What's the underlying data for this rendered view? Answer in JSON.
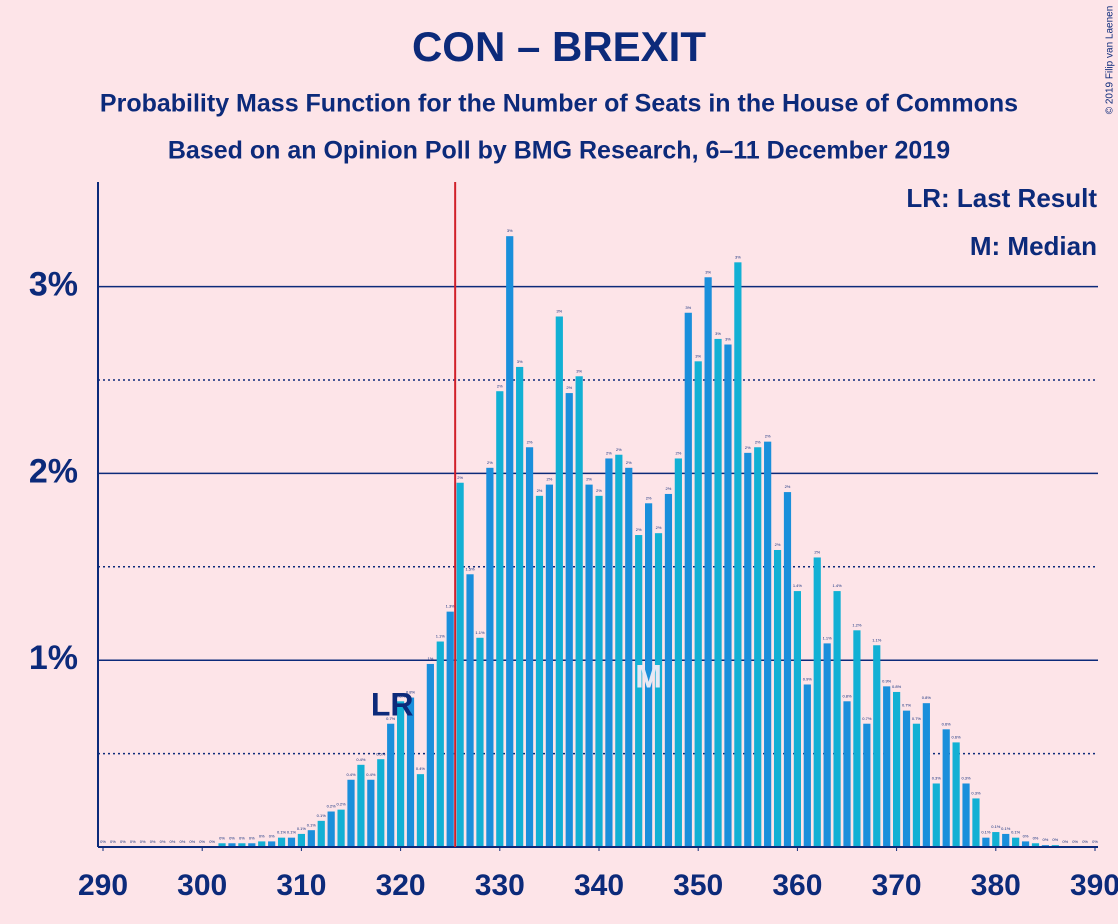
{
  "chart_data": {
    "type": "bar",
    "title": "CON – BREXIT",
    "subtitle": "Probability Mass Function for the Number of Seats in the House of Commons",
    "subtitle2": "Based on an Opinion Poll by BMG Research, 6–11 December 2019",
    "copyright": "© 2019 Filip van Laenen",
    "legend": [
      "LR: Last Result",
      "M: Median"
    ],
    "last_result": 326,
    "last_result_label": "LR",
    "median": 345,
    "median_label": "M",
    "x": [
      290,
      291,
      292,
      293,
      294,
      295,
      296,
      297,
      298,
      299,
      300,
      301,
      302,
      303,
      304,
      305,
      306,
      307,
      308,
      309,
      310,
      311,
      312,
      313,
      314,
      315,
      316,
      317,
      318,
      319,
      320,
      321,
      322,
      323,
      324,
      325,
      326,
      327,
      328,
      329,
      330,
      331,
      332,
      333,
      334,
      335,
      336,
      337,
      338,
      339,
      340,
      341,
      342,
      343,
      344,
      345,
      346,
      347,
      348,
      349,
      350,
      351,
      352,
      353,
      354,
      355,
      356,
      357,
      358,
      359,
      360,
      361,
      362,
      363,
      364,
      365,
      366,
      367,
      368,
      369,
      370,
      371,
      372,
      373,
      374,
      375,
      376,
      377,
      378,
      379,
      380,
      381,
      382,
      383,
      384,
      385,
      386,
      387,
      388,
      389,
      390
    ],
    "values": [
      0,
      0,
      0,
      0,
      0,
      0,
      0,
      0,
      0,
      0,
      0,
      0,
      0.02,
      0.02,
      0.02,
      0.02,
      0.03,
      0.03,
      0.05,
      0.05,
      0.07,
      0.09,
      0.14,
      0.19,
      0.2,
      0.36,
      0.44,
      0.36,
      0.47,
      0.66,
      0.78,
      0.8,
      0.39,
      0.98,
      1.1,
      1.26,
      1.95,
      1.46,
      1.12,
      2.03,
      2.44,
      3.27,
      2.57,
      2.14,
      1.88,
      1.94,
      2.84,
      2.43,
      2.52,
      1.94,
      1.88,
      2.08,
      2.1,
      2.03,
      1.67,
      1.84,
      1.68,
      1.89,
      2.08,
      2.86,
      2.6,
      3.05,
      2.72,
      2.69,
      3.13,
      2.11,
      2.14,
      2.17,
      1.59,
      1.9,
      1.37,
      0.87,
      1.55,
      1.09,
      1.37,
      0.78,
      1.16,
      0.66,
      1.08,
      0.86,
      0.83,
      0.73,
      0.66,
      0.77,
      0.34,
      0.63,
      0.56,
      0.34,
      0.26,
      0.05,
      0.08,
      0.07,
      0.05,
      0.03,
      0.02,
      0.01,
      0.01,
      0,
      0,
      0,
      0
    ],
    "value_labels": [
      "0%",
      "0%",
      "0%",
      "0%",
      "0%",
      "0%",
      "0%",
      "0%",
      "0%",
      "0%",
      "0%",
      "0%",
      "0%",
      "0%",
      "0%",
      "0%",
      "0%",
      "0%",
      "0.1%",
      "0.1%",
      "0.1%",
      "0.1%",
      "0.1%",
      "0.2%",
      "0.2%",
      "0.4%",
      "0.4%",
      "0.4%",
      "0.5%",
      "0.7%",
      "0.8%",
      "0.8%",
      "0.4%",
      "1%",
      "1.1%",
      "1.3%",
      "2%",
      "1.5%",
      "1.1%",
      "2%",
      "2%",
      "3%",
      "3%",
      "2%",
      "2%",
      "2%",
      "3%",
      "2%",
      "3%",
      "2%",
      "2%",
      "2%",
      "2%",
      "2%",
      "2%",
      "2%",
      "2%",
      "2%",
      "2%",
      "3%",
      "3%",
      "3%",
      "3%",
      "3%",
      "3%",
      "2%",
      "2%",
      "2%",
      "2%",
      "2%",
      "1.4%",
      "0.9%",
      "2%",
      "1.1%",
      "1.4%",
      "0.8%",
      "1.2%",
      "0.7%",
      "1.1%",
      "0.9%",
      "0.8%",
      "0.7%",
      "0.7%",
      "0.8%",
      "0.3%",
      "0.6%",
      "0.6%",
      "0.3%",
      "0.3%",
      "0.1%",
      "0.1%",
      "0.1%",
      "0.1%",
      "0%",
      "0%",
      "0%",
      "0%",
      "0%",
      "0%",
      "0%",
      "0%"
    ],
    "colors": [
      "#12b0d4",
      "#1a8fdb"
    ],
    "xlim": [
      290,
      390
    ],
    "xticks": [
      290,
      300,
      310,
      320,
      330,
      340,
      350,
      360,
      370,
      380,
      390
    ],
    "ylim": [
      0,
      3.56
    ],
    "yticks": [
      {
        "value": 1,
        "label": "1%"
      },
      {
        "value": 2,
        "label": "2%"
      },
      {
        "value": 3,
        "label": "3%"
      }
    ],
    "minor_yticks": [
      0.5,
      1.5,
      2.5
    ],
    "grid": true
  }
}
